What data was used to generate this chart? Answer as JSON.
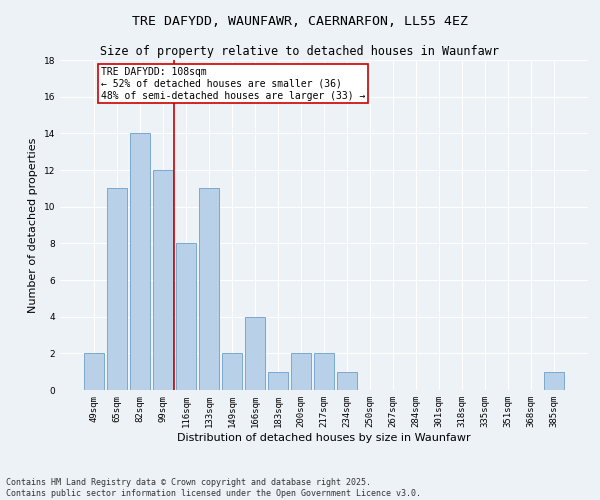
{
  "title": "TRE DAFYDD, WAUNFAWR, CAERNARFON, LL55 4EZ",
  "subtitle": "Size of property relative to detached houses in Waunfawr",
  "xlabel": "Distribution of detached houses by size in Waunfawr",
  "ylabel": "Number of detached properties",
  "categories": [
    "49sqm",
    "65sqm",
    "82sqm",
    "99sqm",
    "116sqm",
    "133sqm",
    "149sqm",
    "166sqm",
    "183sqm",
    "200sqm",
    "217sqm",
    "234sqm",
    "250sqm",
    "267sqm",
    "284sqm",
    "301sqm",
    "318sqm",
    "335sqm",
    "351sqm",
    "368sqm",
    "385sqm"
  ],
  "values": [
    2,
    11,
    14,
    12,
    8,
    11,
    2,
    4,
    1,
    2,
    2,
    1,
    0,
    0,
    0,
    0,
    0,
    0,
    0,
    0,
    1
  ],
  "bar_color": "#b8d0e8",
  "bar_edge_color": "#7aa8cc",
  "vline_x_idx": 3.5,
  "vline_color": "#cc0000",
  "annotation_text": "TRE DAFYDD: 108sqm\n← 52% of detached houses are smaller (36)\n48% of semi-detached houses are larger (33) →",
  "annotation_box_color": "#ffffff",
  "annotation_box_edge": "#cc0000",
  "ylim": [
    0,
    18
  ],
  "yticks": [
    0,
    2,
    4,
    6,
    8,
    10,
    12,
    14,
    16,
    18
  ],
  "footer_line1": "Contains HM Land Registry data © Crown copyright and database right 2025.",
  "footer_line2": "Contains public sector information licensed under the Open Government Licence v3.0.",
  "bg_color": "#edf2f7",
  "grid_color": "#ffffff",
  "title_fontsize": 9.5,
  "subtitle_fontsize": 8.5,
  "ylabel_fontsize": 8,
  "xlabel_fontsize": 8,
  "tick_fontsize": 6.5,
  "annot_fontsize": 7,
  "footer_fontsize": 6
}
